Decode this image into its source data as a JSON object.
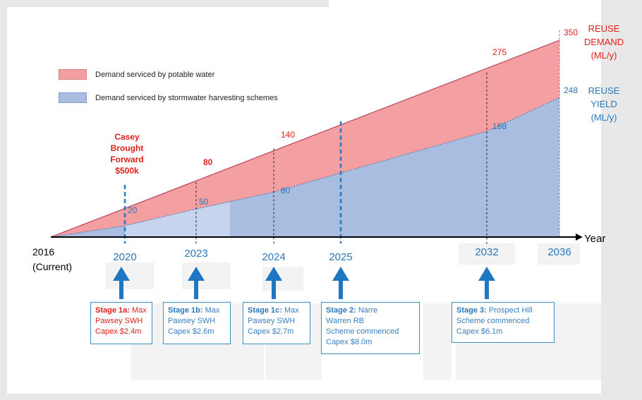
{
  "colors": {
    "potable": "#f4a0a3",
    "stormwater": "#a9bde0",
    "red_text": "#e0201b",
    "blue_text": "#2a78b8",
    "box_border": "#3a8fc4",
    "arrow": "#1f77c4"
  },
  "legend": {
    "potable_label": "Demand serviced by potable water",
    "stormwater_label": "Demand serviced by stormwater harvesting schemes"
  },
  "annotation": {
    "casey_lines": [
      "Casey",
      "Brought",
      "Forward",
      "$500k"
    ]
  },
  "side_labels": {
    "reuse_demand": [
      "REUSE",
      "DEMAND",
      "(ML/y)"
    ],
    "reuse_yield": [
      "REUSE",
      "YIELD",
      "(ML/y)"
    ]
  },
  "chart_data": {
    "type": "area",
    "xlabel": "Year",
    "start_label": [
      "2016",
      "(Current)"
    ],
    "milestone_years": [
      "2020",
      "2023",
      "2024",
      "2025",
      "2032",
      "2036"
    ],
    "series": [
      {
        "name": "Demand serviced by potable water",
        "points": [
          {
            "year": 2016,
            "value": 0
          },
          {
            "year": 2023,
            "value": 80,
            "label": "80"
          },
          {
            "year": 2024,
            "value": 140,
            "label": "140"
          },
          {
            "year": 2032,
            "value": 275,
            "label": "275"
          },
          {
            "year": 2036,
            "value": 350,
            "label": "350"
          }
        ]
      },
      {
        "name": "Demand serviced by stormwater harvesting schemes",
        "points": [
          {
            "year": 2016,
            "value": 0
          },
          {
            "year": 2020,
            "value": 20,
            "label": "20"
          },
          {
            "year": 2023,
            "value": 50,
            "label": "50"
          },
          {
            "year": 2024,
            "value": 80,
            "label": "80"
          },
          {
            "year": 2032,
            "value": 188,
            "label": "188"
          },
          {
            "year": 2036,
            "value": 248,
            "label": "248"
          }
        ]
      }
    ]
  },
  "stages": [
    {
      "name": "Stage 1a:",
      "text_first": "Max",
      "text_rest": [
        "Pawsey SWH",
        "Capex $2.4m"
      ],
      "style": "red"
    },
    {
      "name": "Stage 1b:",
      "text_first": "Max",
      "text_rest": [
        "Pawsey SWH",
        "Capex $2.6m"
      ],
      "style": "blue"
    },
    {
      "name": "Stage 1c:",
      "text_first": "Max",
      "text_rest": [
        "Pawsey SWH",
        "Capex $2.7m"
      ],
      "style": "blue"
    },
    {
      "name": "Stage 2:",
      "text_first": "Narre",
      "text_rest": [
        "Warren RB",
        "Scheme commenced",
        "Capex $8.0m"
      ],
      "style": "blue"
    },
    {
      "name": "Stage 3:",
      "text_first": "Prospect Hill",
      "text_rest": [
        "Scheme commenced",
        "Capex $6.1m"
      ],
      "style": "blue"
    }
  ]
}
